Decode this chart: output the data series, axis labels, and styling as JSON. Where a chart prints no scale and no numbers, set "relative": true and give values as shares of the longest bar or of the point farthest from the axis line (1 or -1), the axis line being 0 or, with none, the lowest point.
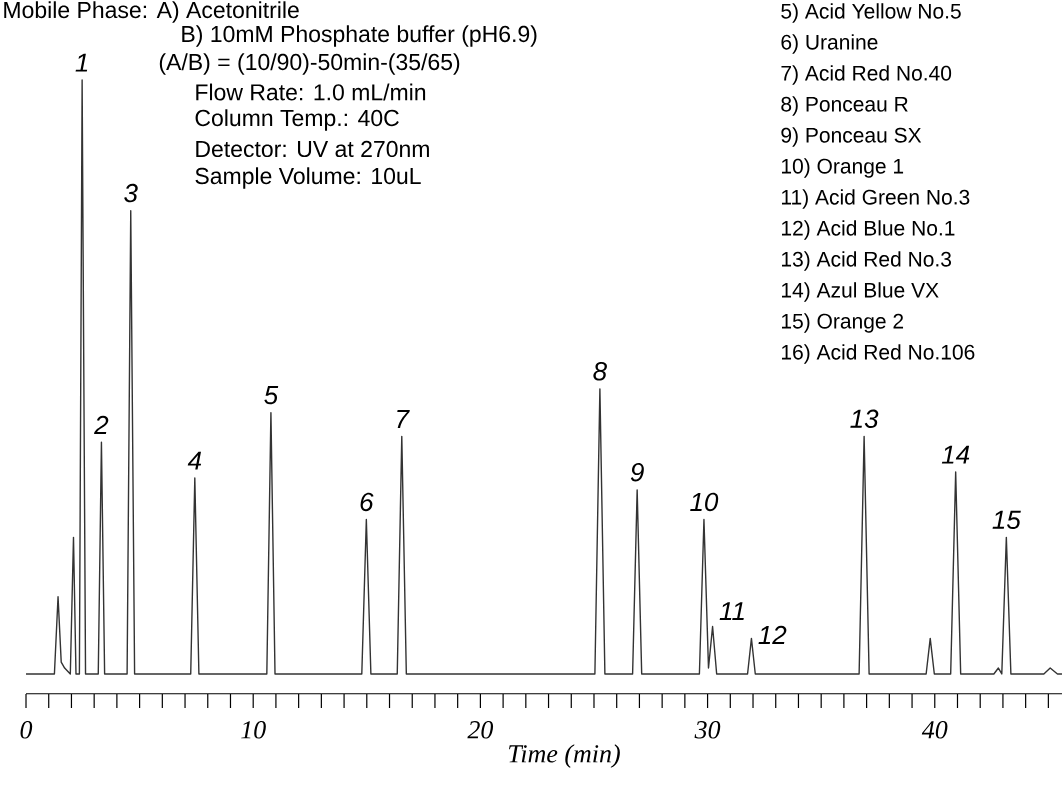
{
  "chart_data": {
    "type": "line",
    "relative": true,
    "xlabel": "Time (min)",
    "x": [
      0,
      1.25,
      1.41,
      1.55,
      1.7,
      1.95,
      2.09,
      2.2,
      2.35,
      2.47,
      2.62,
      3.18,
      3.32,
      3.46,
      4.45,
      4.61,
      4.78,
      7.25,
      7.43,
      7.61,
      10.6,
      10.78,
      10.96,
      14.78,
      14.98,
      15.18,
      16.34,
      16.54,
      16.74,
      25.04,
      25.26,
      25.48,
      26.7,
      26.9,
      27.1,
      29.64,
      29.84,
      30.04,
      30.22,
      30.4,
      31.76,
      31.93,
      32.1,
      36.67,
      36.89,
      37.11,
      39.62,
      39.8,
      39.98,
      40.7,
      40.92,
      41.14,
      42.6,
      42.8,
      42.95,
      43.15,
      43.35,
      44.8,
      45.08,
      45.4,
      45.6
    ],
    "series": [
      {
        "color": "#333333",
        "values": [
          0,
          0,
          0.13,
          0.02,
          0.01,
          0,
          0.23,
          0,
          0,
          1.0,
          0,
          0,
          0.39,
          0,
          0,
          0.78,
          0,
          0,
          0.33,
          0,
          0,
          0.44,
          0,
          0,
          0.26,
          0,
          0,
          0.4,
          0,
          0,
          0.48,
          0,
          0,
          0.31,
          0,
          0,
          0.26,
          0.01,
          0.08,
          0,
          0,
          0.06,
          0,
          0,
          0.4,
          0,
          0,
          0.06,
          0,
          0,
          0.34,
          0,
          0,
          0.01,
          0,
          0.23,
          0,
          0,
          0.01,
          0,
          0
        ]
      }
    ],
    "xlim": [
      0,
      45.6
    ],
    "xticks": [
      0,
      {
        "value": 1,
        "label": null
      },
      {
        "value": 2,
        "label": null
      },
      {
        "value": 3,
        "label": null
      },
      {
        "value": 4,
        "label": null
      },
      {
        "value": 5,
        "label": null
      },
      {
        "value": 6,
        "label": null
      },
      {
        "value": 7,
        "label": null
      },
      {
        "value": 8,
        "label": null
      },
      {
        "value": 9,
        "label": null
      },
      10,
      {
        "value": 11,
        "label": null
      },
      {
        "value": 12,
        "label": null
      },
      {
        "value": 13,
        "label": null
      },
      {
        "value": 14,
        "label": null
      },
      {
        "value": 15,
        "label": null
      },
      {
        "value": 16,
        "label": null
      },
      {
        "value": 17,
        "label": null
      },
      {
        "value": 18,
        "label": null
      },
      {
        "value": 19,
        "label": null
      },
      20,
      {
        "value": 21,
        "label": null
      },
      {
        "value": 22,
        "label": null
      },
      {
        "value": 23,
        "label": null
      },
      {
        "value": 24,
        "label": null
      },
      {
        "value": 25,
        "label": null
      },
      {
        "value": 26,
        "label": null
      },
      {
        "value": 27,
        "label": null
      },
      {
        "value": 28,
        "label": null
      },
      {
        "value": 29,
        "label": null
      },
      30,
      {
        "value": 31,
        "label": null
      },
      {
        "value": 32,
        "label": null
      },
      {
        "value": 33,
        "label": null
      },
      {
        "value": 34,
        "label": null
      },
      {
        "value": 35,
        "label": null
      },
      {
        "value": 36,
        "label": null
      },
      {
        "value": 37,
        "label": null
      },
      {
        "value": 38,
        "label": null
      },
      {
        "value": 39,
        "label": null
      },
      40,
      {
        "value": 41,
        "label": null
      },
      {
        "value": 42,
        "label": null
      },
      {
        "value": 43,
        "label": null
      },
      {
        "value": 44,
        "label": null
      },
      {
        "value": 45,
        "label": null
      }
    ],
    "annotations": [
      {
        "text": "1",
        "x": 2.47,
        "y": 1.0
      },
      {
        "text": "2",
        "x": 3.32,
        "y": 0.39
      },
      {
        "text": "3",
        "x": 4.61,
        "y": 0.78
      },
      {
        "text": "4",
        "x": 7.43,
        "y": 0.33
      },
      {
        "text": "5",
        "x": 10.78,
        "y": 0.44
      },
      {
        "text": "6",
        "x": 14.98,
        "y": 0.26
      },
      {
        "text": "7",
        "x": 16.54,
        "y": 0.4
      },
      {
        "text": "8",
        "x": 25.26,
        "y": 0.48
      },
      {
        "text": "9",
        "x": 26.9,
        "y": 0.31
      },
      {
        "text": "10",
        "x": 29.84,
        "y": 0.26
      },
      {
        "text": "11",
        "x": 30.22,
        "y": 0.08
      },
      {
        "text": "12",
        "x": 31.93,
        "y": 0.06
      },
      {
        "text": "13",
        "x": 36.89,
        "y": 0.4
      },
      {
        "text": "14",
        "x": 40.92,
        "y": 0.34
      },
      {
        "text": "15",
        "x": 43.15,
        "y": 0.23
      },
      "Mobile Phase:  A) Acetonitrile",
      "B) 10mM Phosphate buffer (pH6.9)",
      "(A/B) = (10/90)-50min-(35/65)",
      "Flow Rate: 1.0 mL/min",
      "Column Temp.: 40C",
      "Detector: UV at 270nm",
      "Sample Volume: 10uL",
      "5)  Acid Yellow No.5",
      "6)  Uranine",
      "7)  Acid Red No.40",
      "8)  Ponceau R",
      "9)  Ponceau SX",
      "10) Orange 1",
      "11) Acid Green No.3",
      "12) Acid Blue No.1",
      "13) Acid Red No.3",
      "14) Azul Blue VX",
      "15) Orange 2",
      "16) Acid Red No.106"
    ]
  }
}
